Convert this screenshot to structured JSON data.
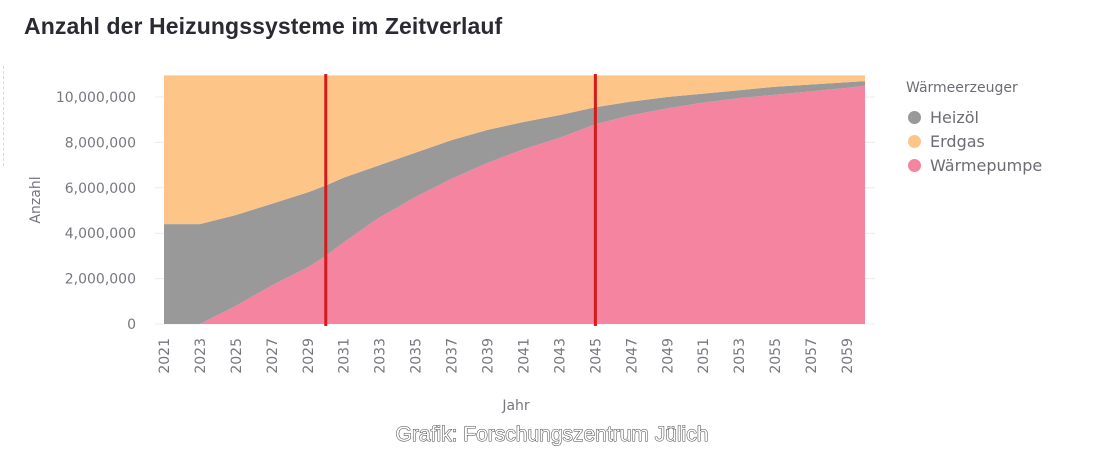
{
  "title": "Anzahl der Heizungssysteme im Zeitverlauf",
  "credit": "Grafik: Forschungszentrum Jülich",
  "legend": {
    "title": "Wärmeerzeuger",
    "items": [
      {
        "label": "Heizöl",
        "color": "#999999"
      },
      {
        "label": "Erdgas",
        "color": "#fec588"
      },
      {
        "label": "Wärmepumpe",
        "color": "#f4849f"
      }
    ]
  },
  "colors": {
    "marker_lines": "#d41a1a",
    "grid": "#ececf0",
    "axis_text": "#77777f"
  },
  "chart_data": {
    "type": "area",
    "stacked": true,
    "title": "Anzahl der Heizungssysteme im Zeitverlauf",
    "xlabel": "Jahr",
    "ylabel": "Anzahl",
    "ylim": [
      0,
      11000000
    ],
    "yticks": [
      0,
      2000000,
      4000000,
      6000000,
      8000000,
      10000000
    ],
    "ytick_labels": [
      "0",
      "2,000,000",
      "4,000,000",
      "6,000,000",
      "8,000,000",
      "10,000,000"
    ],
    "xtick_labels": [
      "2021",
      "2023",
      "2025",
      "2027",
      "2029",
      "2031",
      "2033",
      "2035",
      "2037",
      "2039",
      "2041",
      "2043",
      "2045",
      "2047",
      "2049",
      "2051",
      "2053",
      "2055",
      "2057",
      "2059"
    ],
    "x": [
      2021,
      2023,
      2025,
      2027,
      2029,
      2030,
      2031,
      2033,
      2035,
      2037,
      2039,
      2041,
      2043,
      2045,
      2047,
      2049,
      2051,
      2053,
      2055,
      2057,
      2059,
      2060
    ],
    "series": [
      {
        "name": "Wärmepumpe",
        "values": [
          0,
          0,
          800000,
          1700000,
          2500000,
          3000000,
          3600000,
          4700000,
          5600000,
          6400000,
          7100000,
          7700000,
          8200000,
          8800000,
          9200000,
          9500000,
          9750000,
          9950000,
          10100000,
          10250000,
          10400000,
          10500000
        ]
      },
      {
        "name": "Heizöl",
        "values": [
          4400000,
          4400000,
          4000000,
          3600000,
          3300000,
          3100000,
          2850000,
          2300000,
          1950000,
          1700000,
          1450000,
          1200000,
          1000000,
          750000,
          600000,
          500000,
          400000,
          350000,
          350000,
          300000,
          250000,
          200000
        ]
      },
      {
        "name": "Erdgas",
        "values": [
          6550000,
          6550000,
          6150000,
          5650000,
          5150000,
          4850000,
          4500000,
          3950000,
          3400000,
          2850000,
          2400000,
          2050000,
          1750000,
          1400000,
          1150000,
          950000,
          800000,
          650000,
          500000,
          400000,
          300000,
          250000
        ]
      }
    ],
    "vertical_markers": [
      2030,
      2045
    ],
    "legend_position": "right",
    "grid": true
  }
}
